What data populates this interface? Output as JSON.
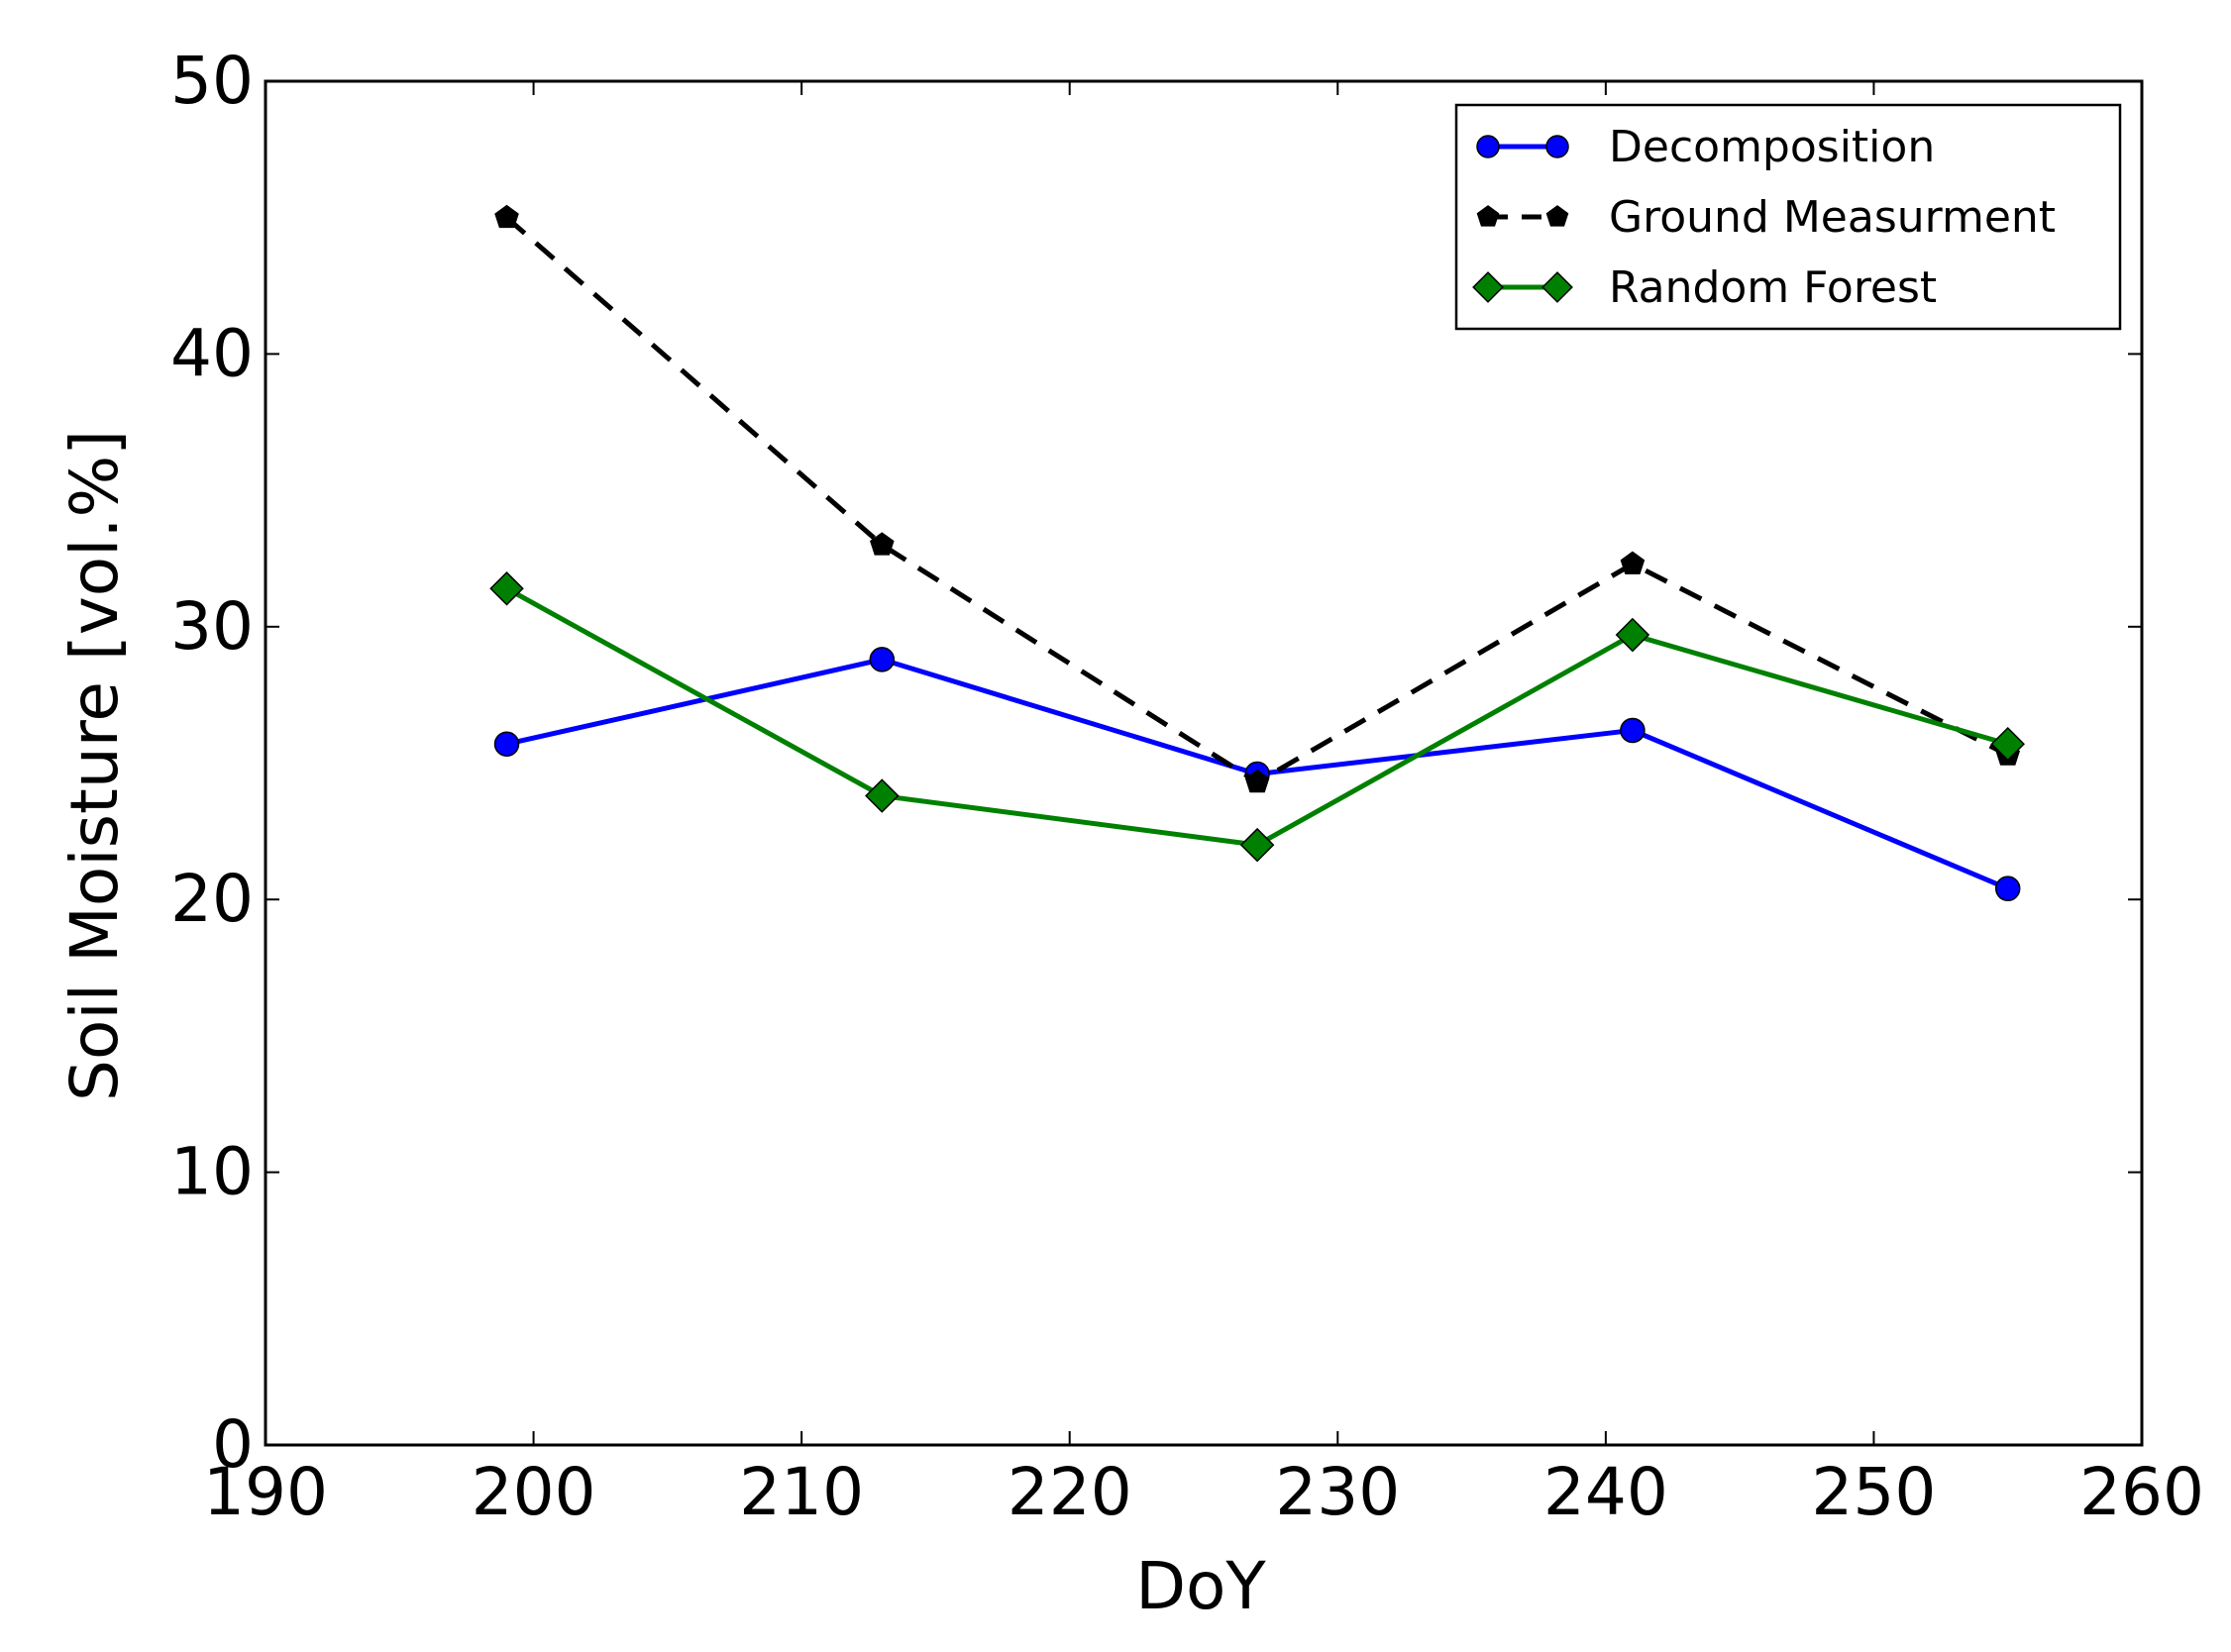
{
  "chart_data": {
    "type": "line",
    "title": "",
    "xlabel": "DoY",
    "ylabel": "Soil Moisture [vol.%]",
    "xlim": [
      190,
      260
    ],
    "ylim": [
      0,
      50
    ],
    "xticks": [
      190,
      200,
      210,
      220,
      230,
      240,
      250,
      260
    ],
    "yticks": [
      0,
      10,
      20,
      30,
      40,
      50
    ],
    "xtick_labels": [
      "190",
      "200",
      "210",
      "220",
      "230",
      "240",
      "250",
      "260"
    ],
    "ytick_labels": [
      "0",
      "10",
      "20",
      "30",
      "40",
      "50"
    ],
    "grid": false,
    "legend_position": "top-right",
    "x": [
      199,
      213,
      227,
      241,
      255
    ],
    "series": [
      {
        "name": "Decomposition",
        "values": [
          25.7,
          28.8,
          24.6,
          26.2,
          20.4
        ],
        "color": "#0000ff",
        "marker": "circle",
        "line_style": "solid"
      },
      {
        "name": "Ground Measurment",
        "values": [
          45.0,
          33.0,
          24.3,
          32.3,
          25.3
        ],
        "color": "#000000",
        "marker": "pentagon",
        "line_style": "dashed"
      },
      {
        "name": "Random Forest",
        "values": [
          31.4,
          23.8,
          22.0,
          29.7,
          25.7
        ],
        "color": "#008000",
        "marker": "diamond",
        "line_style": "solid"
      }
    ]
  }
}
